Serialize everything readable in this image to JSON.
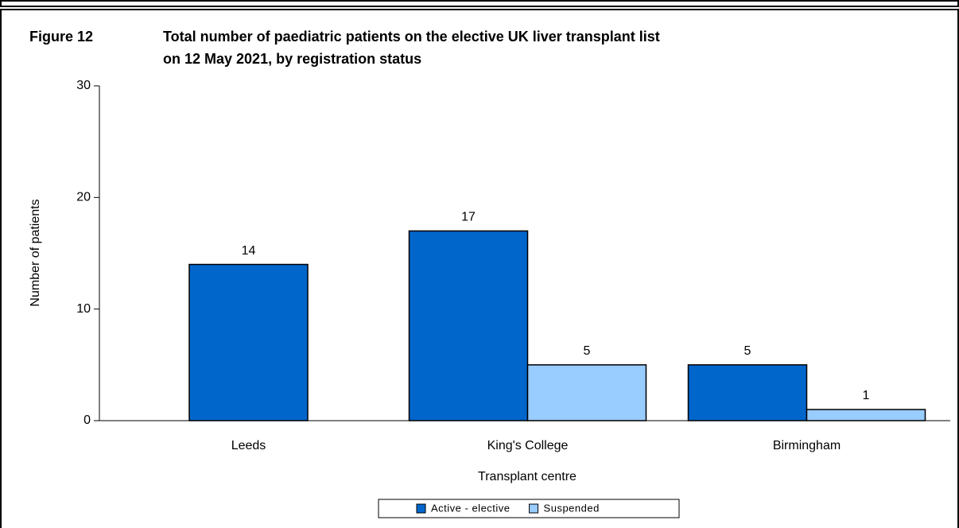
{
  "chart_data": {
    "type": "bar",
    "figure_label": "Figure 12",
    "title": [
      "Total number of paediatric patients on the elective UK liver transplant list",
      "on 12 May 2021, by registration status"
    ],
    "x_label": "Transplant centre",
    "y_label": "Number of patients",
    "categories": [
      "Leeds",
      "King's College",
      "Birmingham"
    ],
    "series": [
      {
        "name": "Active - elective",
        "color": "#0066cc",
        "values": [
          14,
          17,
          5
        ]
      },
      {
        "name": "Suspended",
        "color": "#99ccff",
        "values": [
          null,
          5,
          1
        ]
      }
    ],
    "ylim": [
      0,
      30
    ],
    "yticks": [
      0,
      10,
      20,
      30
    ],
    "grid": false,
    "legend": "bottom"
  }
}
